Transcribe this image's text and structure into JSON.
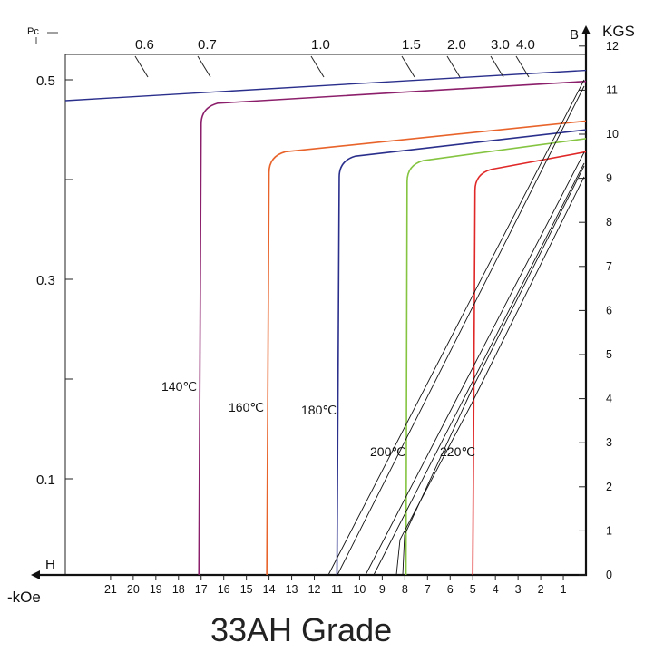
{
  "chart_data": {
    "type": "line",
    "title": "33AH Grade",
    "x_axis": {
      "label": "H",
      "unit": "-kOe",
      "range": [
        0,
        23
      ],
      "ticks": [
        21,
        20,
        19,
        18,
        17,
        16,
        15,
        14,
        13,
        12,
        11,
        10,
        9,
        8,
        7,
        6,
        5,
        4,
        3,
        2,
        1
      ]
    },
    "y_axis_right": {
      "label": "B",
      "unit": "KGS",
      "range": [
        0,
        12.25
      ],
      "ticks": [
        0,
        1,
        2,
        3,
        4,
        5,
        6,
        7,
        8,
        9,
        10,
        11,
        12
      ]
    },
    "y_axis_left": {
      "label": "Pc",
      "ticks": [
        "0.5",
        "0.3",
        "0.1"
      ]
    },
    "pc_lines": [
      "0.6",
      "0.7",
      "1.0",
      "1.5",
      "2.0",
      "3.0",
      "4.0"
    ],
    "series": [
      {
        "name": "140℃",
        "color": "#8c1f6b",
        "br": 11.2,
        "knee_h": 17.0,
        "knee_b": 10.6,
        "hci": 17.1
      },
      {
        "name": "160℃",
        "color": "#e8632a",
        "br": 10.3,
        "knee_h": 14.0,
        "knee_b": 9.5,
        "hci": 14.1
      },
      {
        "name": "180℃",
        "color": "#2a2f8c",
        "br": 10.1,
        "knee_h": 10.9,
        "knee_b": 9.4,
        "hci": 11.0
      },
      {
        "name": "200℃",
        "color": "#84c440",
        "br": 9.9,
        "knee_h": 7.9,
        "knee_b": 9.3,
        "hci": 7.95
      },
      {
        "name": "220℃",
        "color": "#e02828",
        "br": 9.6,
        "knee_h": 4.9,
        "knee_b": 9.1,
        "hci": 5.0
      }
    ],
    "top_line": {
      "color": "#2a2f8c",
      "br": 11.45,
      "b_at_left": 11.0
    },
    "grid": false
  }
}
